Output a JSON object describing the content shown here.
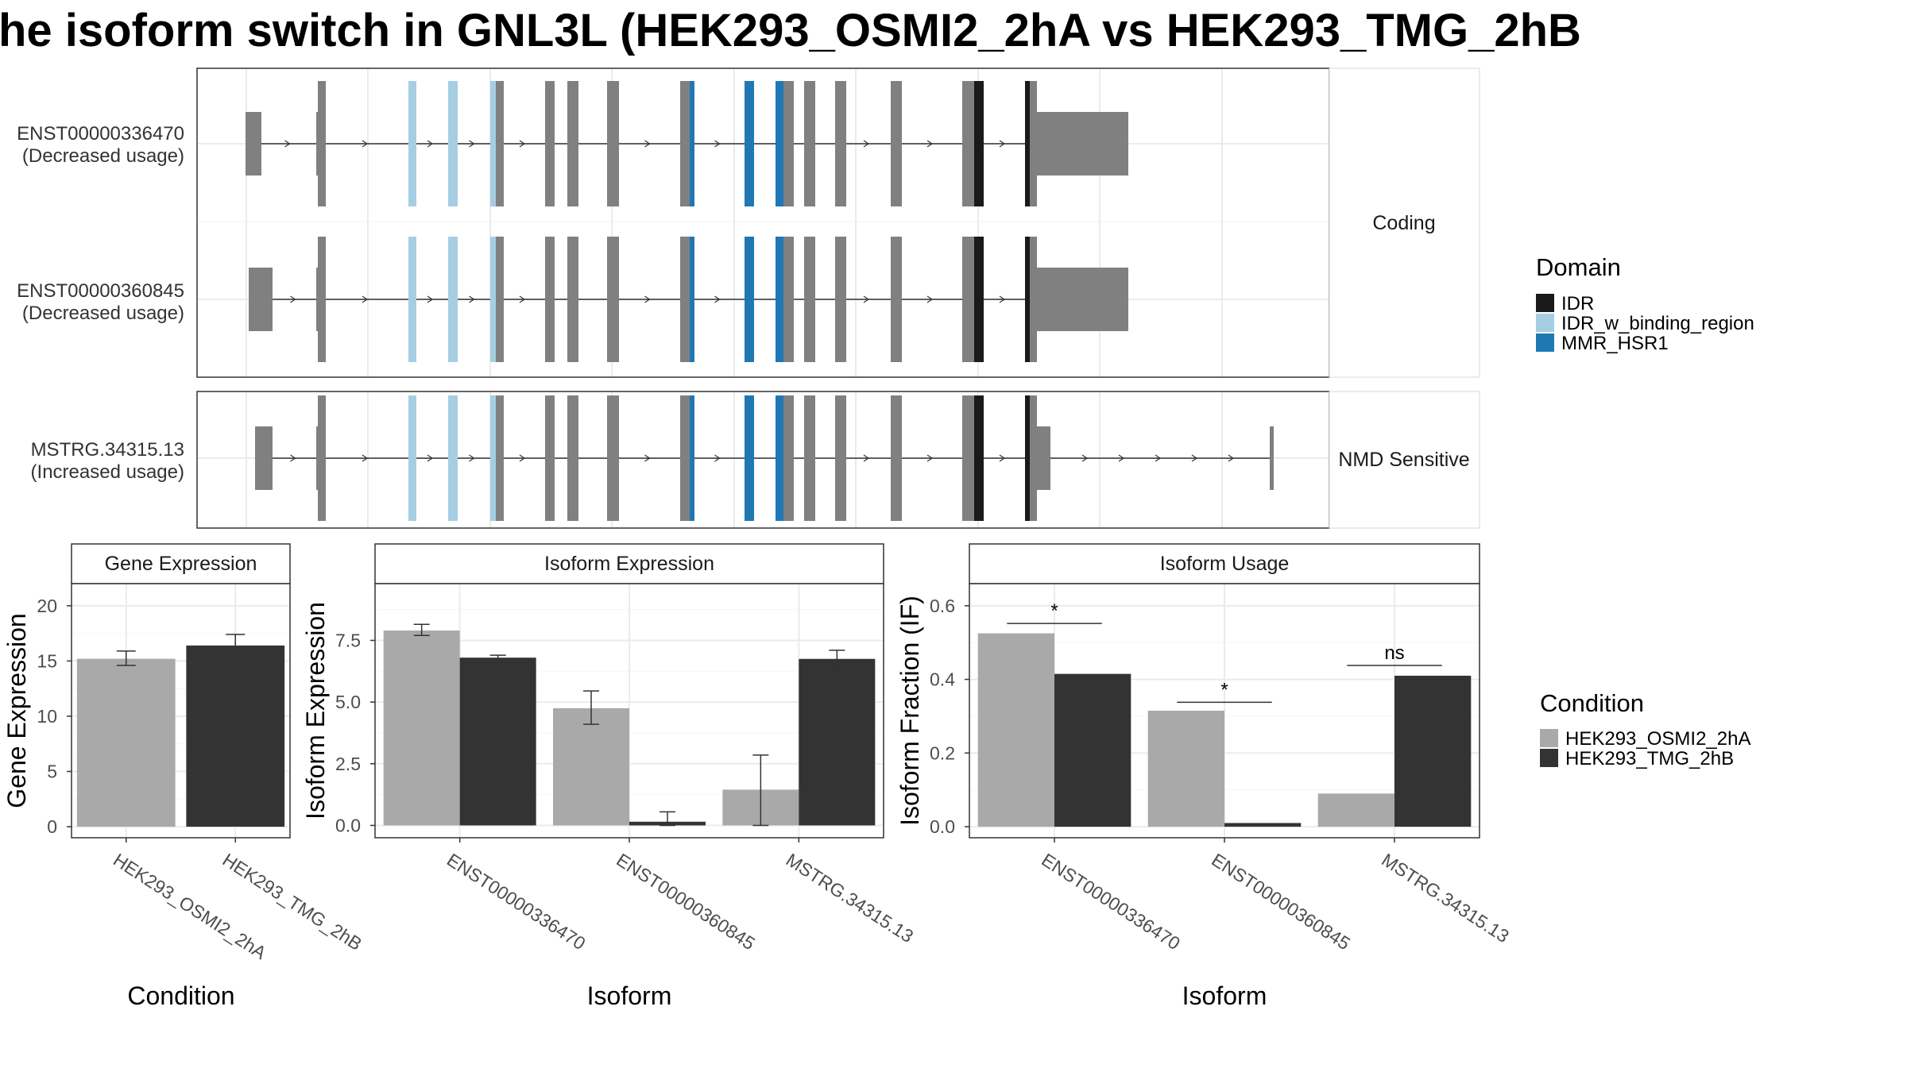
{
  "title": "he isoform switch in GNL3L (HEK293_OSMI2_2hA vs HEK293_TMG_2hB",
  "colors": {
    "IDR": "#1a1a1a",
    "IDR_w_binding_region": "#a6cee3",
    "MMR_HSR1": "#1f78b4",
    "exon": "#808080",
    "HEK293_OSMI2_2hA": "#a9a9a9",
    "HEK293_TMG_2hB": "#333333"
  },
  "structure": {
    "panels": [
      {
        "label": "Coding",
        "transcripts": [
          "t1",
          "t2"
        ]
      },
      {
        "label": "NMD Sensitive",
        "transcripts": [
          "t3"
        ]
      }
    ],
    "transcripts": {
      "t1": {
        "id": "ENST00000336470",
        "usage": "(Decreased usage)",
        "start_exon": {
          "from": 309,
          "to": 329
        },
        "end_exon": {
          "from": 1298,
          "to": 1420
        },
        "tail": []
      },
      "t2": {
        "id": "ENST00000360845",
        "usage": "(Decreased usage)",
        "start_exon": {
          "from": 313,
          "to": 343
        },
        "end_exon": {
          "from": 1298,
          "to": 1420
        },
        "tail": []
      },
      "t3": {
        "id": "MSTRG.34315.13",
        "usage": "(Increased usage)",
        "start_exon": {
          "from": 321,
          "to": 343
        },
        "end_exon": {
          "from": 1298,
          "to": 1322
        },
        "tail": [
          {
            "from": 1598,
            "to": 1603
          }
        ]
      }
    },
    "exons": [
      {
        "from": 400,
        "to": 410,
        "domain": "exon"
      },
      {
        "from": 514,
        "to": 524,
        "domain": "IDR_w_binding_region"
      },
      {
        "from": 564,
        "to": 576,
        "domain": "IDR_w_binding_region"
      },
      {
        "from": 617,
        "to": 624,
        "domain": "IDR_w_binding_region"
      },
      {
        "from": 624,
        "to": 634,
        "domain": "exon"
      },
      {
        "from": 686,
        "to": 698,
        "domain": "exon"
      },
      {
        "from": 714,
        "to": 728,
        "domain": "exon"
      },
      {
        "from": 764,
        "to": 779,
        "domain": "exon"
      },
      {
        "from": 856,
        "to": 868,
        "domain": "exon"
      },
      {
        "from": 868,
        "to": 874,
        "domain": "MMR_HSR1"
      },
      {
        "from": 937,
        "to": 949,
        "domain": "MMR_HSR1"
      },
      {
        "from": 976,
        "to": 986,
        "domain": "MMR_HSR1"
      },
      {
        "from": 986,
        "to": 999,
        "domain": "exon"
      },
      {
        "from": 1012,
        "to": 1026,
        "domain": "exon"
      },
      {
        "from": 1051,
        "to": 1065,
        "domain": "exon"
      },
      {
        "from": 1121,
        "to": 1135,
        "domain": "exon"
      },
      {
        "from": 1211,
        "to": 1226,
        "domain": "exon"
      },
      {
        "from": 1226,
        "to": 1238,
        "domain": "IDR"
      },
      {
        "from": 1290,
        "to": 1296,
        "domain": "IDR"
      },
      {
        "from": 1296,
        "to": 1305,
        "domain": "exon"
      }
    ]
  },
  "legend_domain": {
    "title": "Domain",
    "items": [
      {
        "label": "IDR",
        "key": "IDR"
      },
      {
        "label": "IDR_w_binding_region",
        "key": "IDR_w_binding_region"
      },
      {
        "label": "MMR_HSR1",
        "key": "MMR_HSR1"
      }
    ]
  },
  "legend_condition": {
    "title": "Condition",
    "items": [
      {
        "label": "HEK293_OSMI2_2hA",
        "key": "HEK293_OSMI2_2hA"
      },
      {
        "label": "HEK293_TMG_2hB",
        "key": "HEK293_TMG_2hB"
      }
    ]
  },
  "chart_data": [
    {
      "type": "bar",
      "title": "Gene Expression",
      "xlabel": "Condition",
      "ylabel": "Gene Expression",
      "categories": [
        "HEK293_OSMI2_2hA",
        "HEK293_TMG_2hB"
      ],
      "values": [
        15.2,
        16.4
      ],
      "errors": [
        [
          14.6,
          15.9
        ],
        [
          15.4,
          17.4
        ]
      ],
      "yticks": [
        "0",
        "5",
        "10",
        "15",
        "20"
      ],
      "ylim": [
        -1,
        22
      ]
    },
    {
      "type": "bar",
      "title": "Isoform Expression",
      "xlabel": "Isoform",
      "ylabel": "Isoform Expression",
      "categories": [
        "ENST00000336470",
        "ENST00000360845",
        "MSTRG.34315.13"
      ],
      "series": [
        {
          "name": "HEK293_OSMI2_2hA",
          "values": [
            7.9,
            4.75,
            1.45
          ],
          "errors": [
            [
              7.7,
              8.15
            ],
            [
              4.1,
              5.45
            ],
            [
              0.0,
              2.85
            ]
          ]
        },
        {
          "name": "HEK293_TMG_2hB",
          "values": [
            6.8,
            0.15,
            6.75
          ],
          "errors": [
            [
              6.7,
              6.9
            ],
            [
              0.0,
              0.55
            ],
            [
              6.4,
              7.1
            ]
          ]
        }
      ],
      "yticks": [
        "0.0",
        "2.5",
        "5.0",
        "7.5"
      ],
      "ylim": [
        -0.5,
        9.8
      ]
    },
    {
      "type": "bar",
      "title": "Isoform Usage",
      "xlabel": "Isoform",
      "ylabel": "Isoform Fraction (IF)",
      "categories": [
        "ENST00000336470",
        "ENST00000360845",
        "MSTRG.34315.13"
      ],
      "series": [
        {
          "name": "HEK293_OSMI2_2hA",
          "values": [
            0.525,
            0.315,
            0.09
          ]
        },
        {
          "name": "HEK293_TMG_2hB",
          "values": [
            0.415,
            0.01,
            0.41
          ]
        }
      ],
      "significance": [
        {
          "label": "*",
          "y": 0.552
        },
        {
          "label": "*",
          "y": 0.338
        },
        {
          "label": "ns",
          "y": 0.438
        }
      ],
      "yticks": [
        "0.0",
        "0.2",
        "0.4",
        "0.6"
      ],
      "ylim": [
        -0.03,
        0.66
      ]
    }
  ]
}
